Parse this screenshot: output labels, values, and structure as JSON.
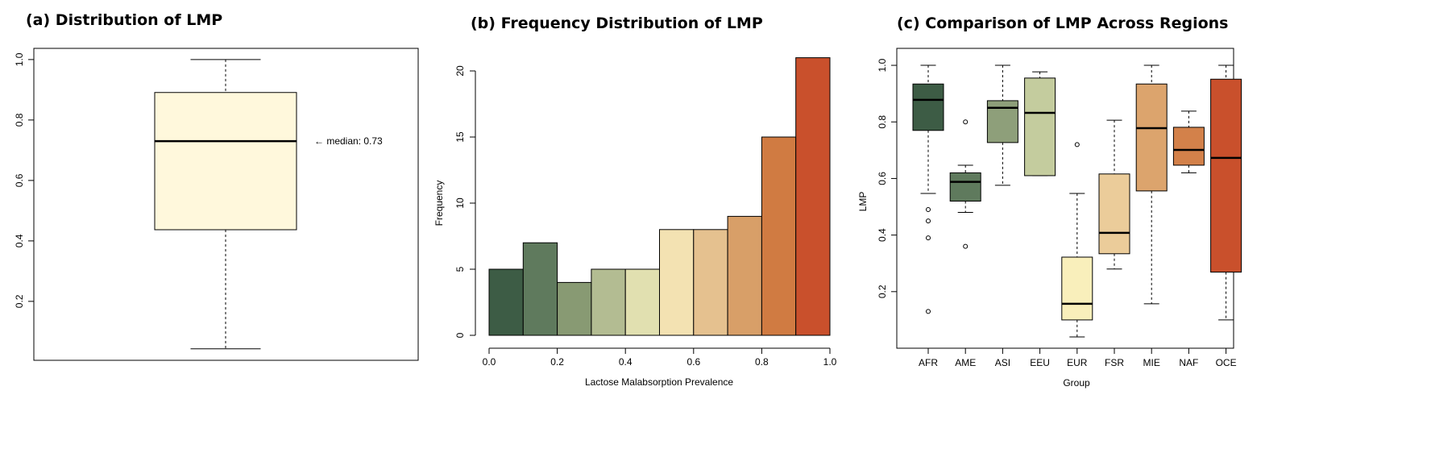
{
  "chart_data": [
    {
      "type": "box",
      "title": "(a) Distribution of LMP",
      "annotation": "← median: 0.73",
      "ylim": [
        0.005,
        1.037
      ],
      "yticks": [
        0.2,
        0.4,
        0.6,
        0.8,
        {
          "value": 1,
          "label": "1.0"
        }
      ],
      "colors": [
        "#fff8dc"
      ],
      "boxes": [
        {
          "min": 0.043,
          "q1": 0.437,
          "median": 0.73,
          "q3": 0.891,
          "max": 1.0
        }
      ]
    },
    {
      "type": "histogram",
      "title": "(b) Frequency Distribution of LMP",
      "xlabel": "Lactose Malabsorption Prevalence",
      "ylabel": "Frequency",
      "bins": [
        0,
        0.1,
        0.2,
        0.3,
        0.4,
        0.5,
        0.6,
        0.7,
        0.8,
        0.9,
        1.0
      ],
      "counts": [
        5,
        7,
        4,
        5,
        5,
        8,
        8,
        9,
        15,
        21
      ],
      "colors": [
        "#3d5c45",
        "#5f7a5d",
        "#889a73",
        "#b3bc92",
        "#e1e0b0",
        "#f3e2b2",
        "#e5c18f",
        "#d89f68",
        "#d07b42",
        "#c9502c"
      ],
      "xlim": [
        0,
        1
      ],
      "xticks": [
        {
          "value": 0,
          "label": "0.0"
        },
        0.2,
        0.4,
        0.6,
        0.8,
        {
          "value": 1,
          "label": "1.0"
        }
      ],
      "ylim": [
        0,
        20
      ],
      "yticks": [
        0,
        5,
        10,
        15,
        20
      ]
    },
    {
      "type": "box",
      "title": "(c) Comparison of LMP Across Regions",
      "xlabel": "Group",
      "ylabel": "LMP",
      "ylim": [
        0,
        1.06
      ],
      "yticks": [
        0.2,
        0.4,
        0.6,
        0.8,
        {
          "value": 1,
          "label": "1.0"
        }
      ],
      "categories": [
        "AFR",
        "AME",
        "ASI",
        "EEU",
        "EUR",
        "FSR",
        "MIE",
        "NAF",
        "OCE"
      ],
      "colors": [
        "#3d5c45",
        "#5f7a5d",
        "#8e9f7a",
        "#c4cc9e",
        "#f9efbb",
        "#ebcc9a",
        "#dca46d",
        "#d3814a",
        "#c9502c"
      ],
      "boxes": [
        {
          "min": 0.547,
          "q1": 0.77,
          "median": 0.878,
          "q3": 0.934,
          "max": 1.0,
          "outliers": [
            0.49,
            0.45,
            0.39,
            0.13
          ]
        },
        {
          "min": 0.48,
          "q1": 0.52,
          "median": 0.588,
          "q3": 0.62,
          "max": 0.647,
          "outliers": [
            0.8,
            0.36
          ]
        },
        {
          "min": 0.576,
          "q1": 0.727,
          "median": 0.85,
          "q3": 0.875,
          "max": 1.0
        },
        {
          "min": 0.61,
          "q1": 0.61,
          "median": 0.832,
          "q3": 0.955,
          "max": 0.977
        },
        {
          "min": 0.04,
          "q1": 0.1,
          "median": 0.157,
          "q3": 0.322,
          "max": 0.547,
          "outliers": [
            0.72
          ]
        },
        {
          "min": 0.28,
          "q1": 0.334,
          "median": 0.408,
          "q3": 0.616,
          "max": 0.806
        },
        {
          "min": 0.157,
          "q1": 0.556,
          "median": 0.778,
          "q3": 0.934,
          "max": 1.0
        },
        {
          "min": 0.62,
          "q1": 0.647,
          "median": 0.701,
          "q3": 0.781,
          "max": 0.838
        },
        {
          "min": 0.1,
          "q1": 0.269,
          "median": 0.673,
          "q3": 0.951,
          "max": 1.0
        }
      ]
    }
  ]
}
